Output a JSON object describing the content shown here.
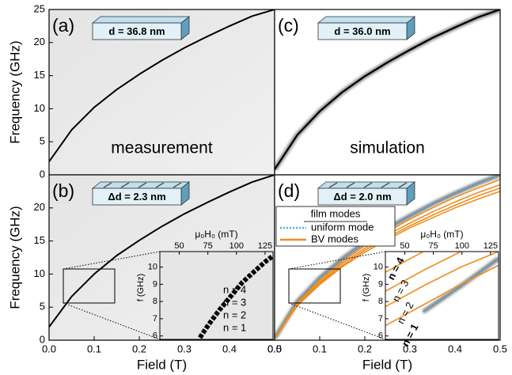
{
  "chart_data": [
    {
      "type": "line",
      "label": "(a)",
      "box_label": "d = 36.8 nm",
      "caption": "measurement",
      "y_label": "Frequency (GHz)",
      "x": [
        0,
        0.05,
        0.1,
        0.15,
        0.2,
        0.25,
        0.3,
        0.35,
        0.4,
        0.45,
        0.5
      ],
      "series": [
        {
          "color": "#000000",
          "values": [
            2,
            6.8,
            10.2,
            12.9,
            15.2,
            17.3,
            19.2,
            20.9,
            22.5,
            24,
            25
          ]
        }
      ],
      "xlim": [
        0,
        0.5
      ],
      "ylim": [
        0,
        25
      ],
      "yticks": [
        0,
        5,
        10,
        15,
        20,
        25
      ]
    },
    {
      "type": "line",
      "label": "(b)",
      "box_label": "Δd = 2.3 nm",
      "y_label": "Frequency (GHz)",
      "x_label": "Field (T)",
      "x": [
        0,
        0.05,
        0.1,
        0.15,
        0.2,
        0.25,
        0.3,
        0.35,
        0.4,
        0.45,
        0.5
      ],
      "series": [
        {
          "color": "#000000",
          "values": [
            2,
            6.6,
            10,
            12.8,
            15.1,
            17.2,
            19.1,
            20.8,
            22.4,
            23.9,
            25
          ]
        }
      ],
      "xlim": [
        0,
        0.5
      ],
      "ylim": [
        0,
        25
      ],
      "yticks": [
        0,
        5,
        10,
        15,
        20
      ],
      "xticks": [
        {
          "value": 0,
          "label": "0.0"
        },
        {
          "value": 0.1,
          "label": "0.1"
        },
        {
          "value": 0.2,
          "label": "0.2"
        },
        {
          "value": 0.3,
          "label": "0.3"
        },
        {
          "value": 0.4,
          "label": "0.4"
        },
        {
          "value": 0.5,
          "label": "0.5"
        }
      ],
      "inset": {
        "x_label": "μ₀H₀ (mT)",
        "y_label": "f (GHz)",
        "xlim": [
          33,
          132
        ],
        "ylim": [
          5.8,
          10.9
        ],
        "xticks": [
          50,
          75,
          100,
          125
        ],
        "yticks": [
          6,
          7,
          8,
          9,
          10
        ],
        "mode_labels": [
          "n = 4",
          "n = 3",
          "n = 2",
          "n = 1"
        ],
        "mode_color": "#f08c1e",
        "x": [
          68,
          75,
          85,
          95,
          105,
          115,
          125,
          131
        ],
        "series": [
          {
            "color": "#000000",
            "values": [
              5.9,
              6.6,
              7.5,
              8.3,
              9.1,
              9.7,
              10.3,
              10.6
            ]
          }
        ]
      }
    },
    {
      "type": "line",
      "label": "(c)",
      "box_label": "d = 36.0 nm",
      "caption": "simulation",
      "x": [
        0,
        0.05,
        0.1,
        0.15,
        0.2,
        0.25,
        0.3,
        0.35,
        0.4,
        0.45,
        0.5
      ],
      "series": [
        {
          "color": "#000000",
          "values": [
            0.8,
            6,
            9.6,
            12.5,
            14.9,
            17,
            18.9,
            20.7,
            22.3,
            23.8,
            25
          ]
        }
      ],
      "xlim": [
        0,
        0.5
      ],
      "ylim": [
        0,
        25
      ]
    },
    {
      "type": "line",
      "label": "(d)",
      "box_label": "Δd = 2.0 nm",
      "x_label": "Field (T)",
      "legend_title": "film modes",
      "x": [
        0,
        0.05,
        0.1,
        0.15,
        0.2,
        0.25,
        0.3,
        0.35,
        0.4,
        0.45,
        0.5
      ],
      "series": [
        {
          "name": "uniform mode",
          "color": "#5aa9d6",
          "values": [
            0.3,
            5.8,
            9.4,
            12.3,
            14.8,
            16.9,
            18.8,
            20.6,
            22.2,
            23.7,
            25
          ]
        },
        {
          "name": "BV modes",
          "color": "#f08c1e",
          "values": [
            [
              0.3,
              5.6,
              9.1,
              11.9,
              14.3,
              16.4,
              18.3,
              20,
              21.6,
              23,
              24.3
            ],
            [
              0.3,
              5.4,
              8.8,
              11.6,
              13.9,
              15.9,
              17.7,
              19.4,
              20.9,
              22.3,
              23.5
            ],
            [
              0.3,
              5.3,
              8.6,
              11.3,
              13.6,
              15.5,
              17.3,
              18.9,
              20.4,
              21.8,
              23
            ],
            [
              0.3,
              5.2,
              8.4,
              11.1,
              13.3,
              15.2,
              17,
              18.5,
              20,
              21.3,
              22.5
            ]
          ]
        }
      ],
      "xlim": [
        0,
        0.5
      ],
      "ylim": [
        0,
        25
      ],
      "xticks": [
        {
          "value": 0,
          "label": "0.0"
        },
        {
          "value": 0.1,
          "label": "0.1"
        },
        {
          "value": 0.2,
          "label": "0.2"
        },
        {
          "value": 0.3,
          "label": "0.3"
        },
        {
          "value": 0.4,
          "label": "0.4"
        },
        {
          "value": 0.5,
          "label": "0.5"
        }
      ],
      "inset": {
        "x_label": "μ₀H₀ (mT)",
        "y_label": "f (GHz)",
        "xlim": [
          33,
          132
        ],
        "ylim": [
          5.8,
          10.9
        ],
        "xticks": [
          50,
          75,
          100,
          125
        ],
        "yticks": [
          6,
          7,
          8,
          9,
          10
        ],
        "mode_labels": [
          "n = 4",
          "n = 3",
          "n = 2",
          "n = 1"
        ],
        "mode_color": "#f08c1e",
        "x": [
          33,
          66,
          99,
          132
        ],
        "series": [
          {
            "color": "#5aa9d6",
            "values": [
              null,
              7.4,
              8.9,
              10.5
            ]
          },
          {
            "color": "#f08c1e",
            "values": [
              [
                9.7,
                10.9,
                null,
                null
              ],
              [
                8.6,
                9.8,
                10.9,
                null
              ],
              [
                7.7,
                8.9,
                10,
                10.9
              ],
              [
                6.6,
                7.8,
                9,
                10.1
              ]
            ]
          }
        ]
      }
    }
  ]
}
